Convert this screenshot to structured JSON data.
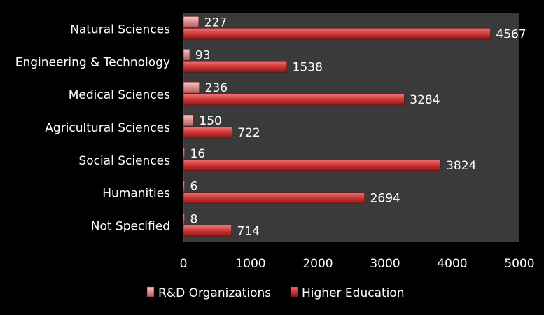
{
  "chart_data": {
    "type": "bar",
    "orientation": "horizontal",
    "categories": [
      "Natural Sciences",
      "Engineering & Technology",
      "Medical Sciences",
      "Agricultural Sciences",
      "Social Sciences",
      "Humanities",
      "Not Specified"
    ],
    "series": [
      {
        "name": "R&D Organizations",
        "values": [
          227,
          93,
          236,
          150,
          16,
          6,
          8
        ],
        "color": "#e89a9a"
      },
      {
        "name": "Higher Education",
        "values": [
          4567,
          1538,
          3284,
          722,
          3824,
          2694,
          714
        ],
        "color": "#c0392b"
      }
    ],
    "xlim": [
      0,
      5000
    ],
    "xticks": [
      "0",
      "1000",
      "2000",
      "3000",
      "4000",
      "5000"
    ],
    "title": "",
    "xlabel": "",
    "ylabel": "",
    "legend_position": "bottom",
    "plot_background": "#3a3a3a",
    "page_background": "#000000",
    "grid": false
  }
}
